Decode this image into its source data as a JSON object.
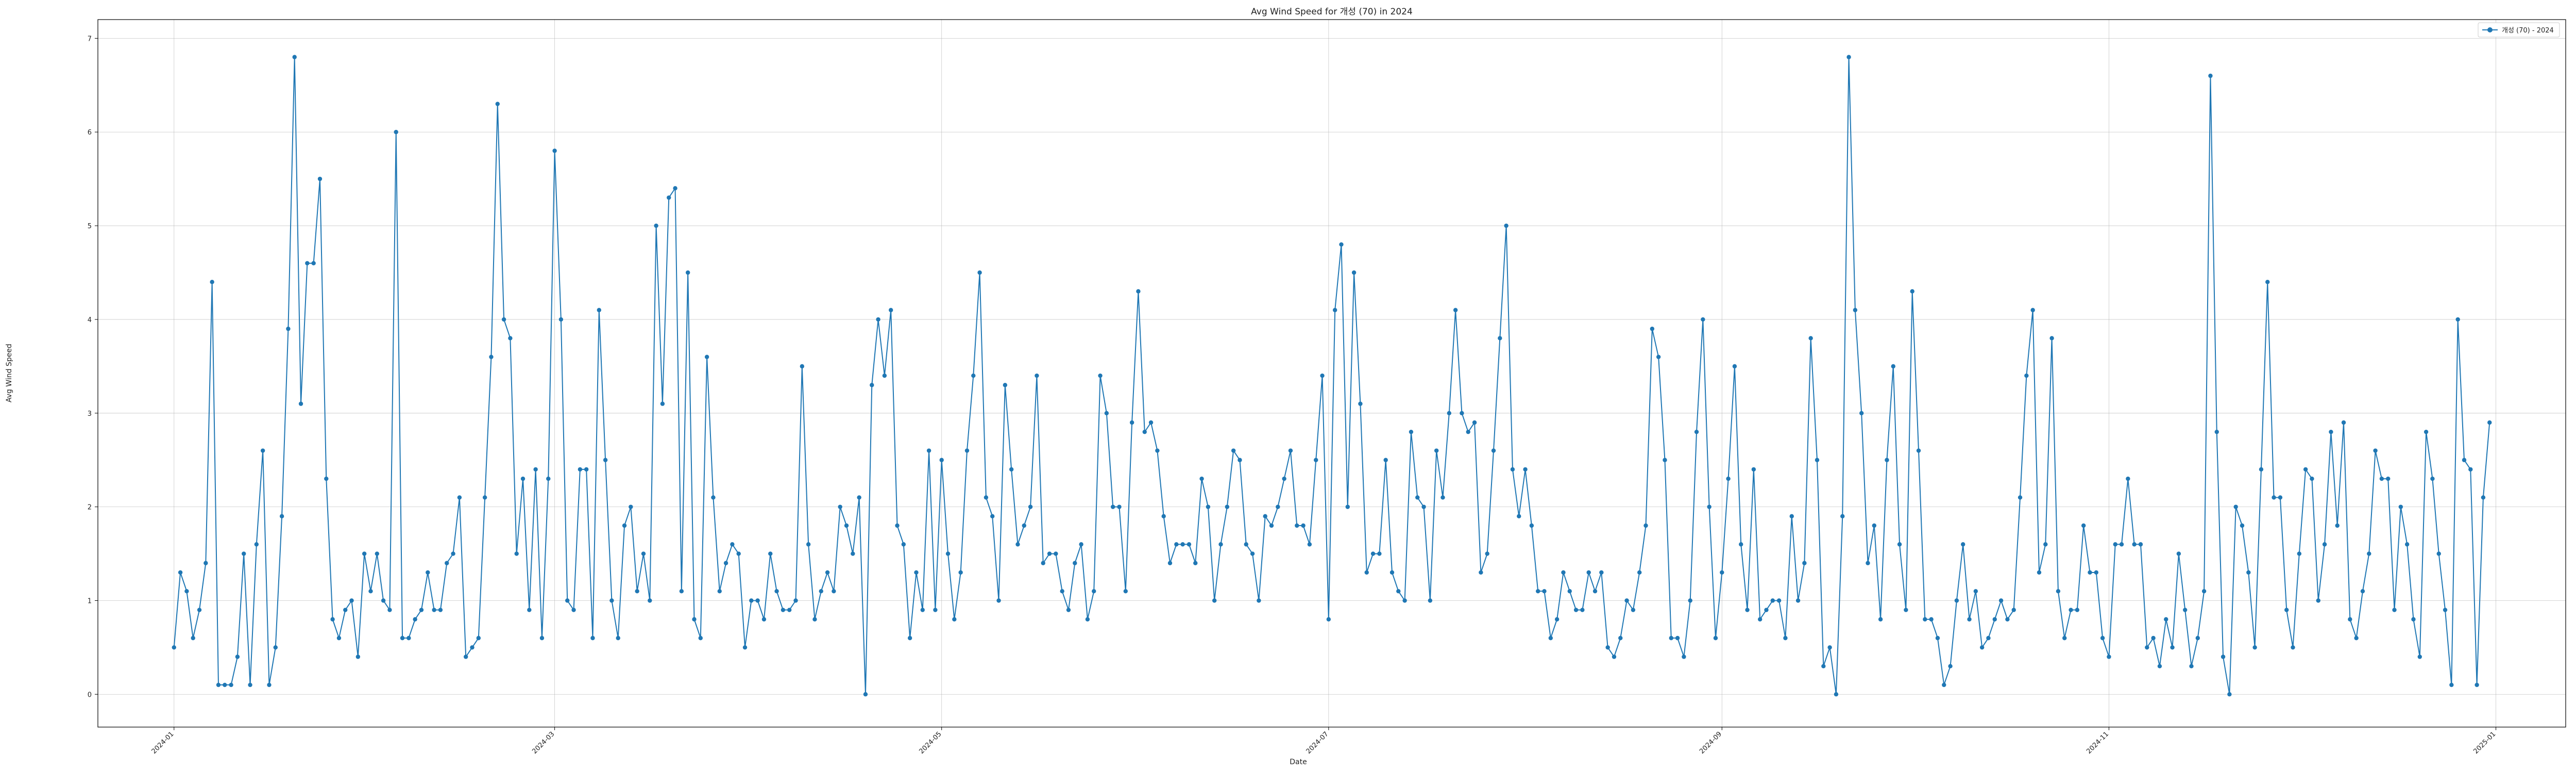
{
  "chart_data": {
    "type": "line",
    "title": "Avg Wind Speed for 개성 (70) in 2024",
    "xlabel": "Date",
    "ylabel": "Avg Wind Speed",
    "xlim": [
      "2023-12-20",
      "2025-01-12"
    ],
    "ylim": [
      -0.35,
      7.2
    ],
    "yticks": [
      0,
      1,
      2,
      3,
      4,
      5,
      6,
      7
    ],
    "ytick_labels": [
      "0",
      "1",
      "2",
      "3",
      "4",
      "5",
      "6",
      "7"
    ],
    "xticks": [
      "2024-01-01",
      "2024-03-01",
      "2024-05-01",
      "2024-07-01",
      "2024-09-01",
      "2024-11-01",
      "2025-01-01"
    ],
    "xtick_labels": [
      "2024-01",
      "2024-03",
      "2024-05",
      "2024-07",
      "2024-09",
      "2024-11",
      "2025-01"
    ],
    "grid": true,
    "legend_position": "top-right",
    "color": "#1f77b4",
    "series": [
      {
        "name": "개성 (70) - 2024",
        "start_date": "2024-01-01",
        "values": [
          0.5,
          1.3,
          1.1,
          0.6,
          0.9,
          1.4,
          4.4,
          0.1,
          0.1,
          0.1,
          0.4,
          1.5,
          0.1,
          1.6,
          2.6,
          0.1,
          0.5,
          1.9,
          3.9,
          6.8,
          3.1,
          4.6,
          4.6,
          5.5,
          2.3,
          0.8,
          0.6,
          0.9,
          1.0,
          0.4,
          1.5,
          1.1,
          1.5,
          1.0,
          0.9,
          6.0,
          0.6,
          0.6,
          0.8,
          0.9,
          1.3,
          0.9,
          0.9,
          1.4,
          1.5,
          2.1,
          0.4,
          0.5,
          0.6,
          2.1,
          3.6,
          6.3,
          4.0,
          3.8,
          1.5,
          2.3,
          0.9,
          2.4,
          0.6,
          2.3,
          5.8,
          4.0,
          1.0,
          0.9,
          2.4,
          2.4,
          0.6,
          4.1,
          2.5,
          1.0,
          0.6,
          1.8,
          2.0,
          1.1,
          1.5,
          1.0,
          5.0,
          3.1,
          5.3,
          5.4,
          1.1,
          4.5,
          0.8,
          0.6,
          3.6,
          2.1,
          1.1,
          1.4,
          1.6,
          1.5,
          0.5,
          1.0,
          1.0,
          0.8,
          1.5,
          1.1,
          0.9,
          0.9,
          1.0,
          3.5,
          1.6,
          0.8,
          1.1,
          1.3,
          1.1,
          2.0,
          1.8,
          1.5,
          2.1,
          0.0,
          3.3,
          4.0,
          3.4,
          4.1,
          1.8,
          1.6,
          0.6,
          1.3,
          0.9,
          2.6,
          0.9,
          2.5,
          1.5,
          0.8,
          1.3,
          2.6,
          3.4,
          4.5,
          2.1,
          1.9,
          1.0,
          3.3,
          2.4,
          1.6,
          1.8,
          2.0,
          3.4,
          1.4,
          1.5,
          1.5,
          1.1,
          0.9,
          1.4,
          1.6,
          0.8,
          1.1,
          3.4,
          3.0,
          2.0,
          2.0,
          1.1,
          2.9,
          4.3,
          2.8,
          2.9,
          2.6,
          1.9,
          1.4,
          1.6,
          1.6,
          1.6,
          1.4,
          2.3,
          2.0,
          1.0,
          1.6,
          2.0,
          2.6,
          2.5,
          1.6,
          1.5,
          1.0,
          1.9,
          1.8,
          2.0,
          2.3,
          2.6,
          1.8,
          1.8,
          1.6,
          2.5,
          3.4,
          0.8,
          4.1,
          4.8,
          2.0,
          4.5,
          3.1,
          1.3,
          1.5,
          1.5,
          2.5,
          1.3,
          1.1,
          1.0,
          2.8,
          2.1,
          2.0,
          1.0,
          2.6,
          2.1,
          3.0,
          4.1,
          3.0,
          2.8,
          2.9,
          1.3,
          1.5,
          2.6,
          3.8,
          5.0,
          2.4,
          1.9,
          2.4,
          1.8,
          1.1,
          1.1,
          0.6,
          0.8,
          1.3,
          1.1,
          0.9,
          0.9,
          1.3,
          1.1,
          1.3,
          0.5,
          0.4,
          0.6,
          1.0,
          0.9,
          1.3,
          1.8,
          3.9,
          3.6,
          2.5,
          0.6,
          0.6,
          0.4,
          1.0,
          2.8,
          4.0,
          2.0,
          0.6,
          1.3,
          2.3,
          3.5,
          1.6,
          0.9,
          2.4,
          0.8,
          0.9,
          1.0,
          1.0,
          0.6,
          1.9,
          1.0,
          1.4,
          3.8,
          2.5,
          0.3,
          0.5,
          0.0,
          1.9,
          6.8,
          4.1,
          3.0,
          1.4,
          1.8,
          0.8,
          2.5,
          3.5,
          1.6,
          0.9,
          4.3,
          2.6,
          0.8,
          0.8,
          0.6,
          0.1,
          0.3,
          1.0,
          1.6,
          0.8,
          1.1,
          0.5,
          0.6,
          0.8,
          1.0,
          0.8,
          0.9,
          2.1,
          3.4,
          4.1,
          1.3,
          1.6,
          3.8,
          1.1,
          0.6,
          0.9,
          0.9,
          1.8,
          1.3,
          1.3,
          0.6,
          0.4,
          1.6,
          1.6,
          2.3,
          1.6,
          1.6,
          0.5,
          0.6,
          0.3,
          0.8,
          0.5,
          1.5,
          0.9,
          0.3,
          0.6,
          1.1,
          6.6,
          2.8,
          0.4,
          0.0,
          2.0,
          1.8,
          1.3,
          0.5,
          2.4,
          4.4,
          2.1,
          2.1,
          0.9,
          0.5,
          1.5,
          2.4,
          2.3,
          1.0,
          1.6,
          2.8,
          1.8,
          2.9,
          0.8,
          0.6,
          1.1,
          1.5,
          2.6,
          2.3,
          2.3,
          0.9,
          2.0,
          1.6,
          0.8,
          0.4,
          2.8,
          2.3,
          1.5,
          0.9,
          0.1,
          4.0,
          2.5,
          2.4,
          0.1,
          2.1,
          2.9
        ]
      }
    ]
  }
}
